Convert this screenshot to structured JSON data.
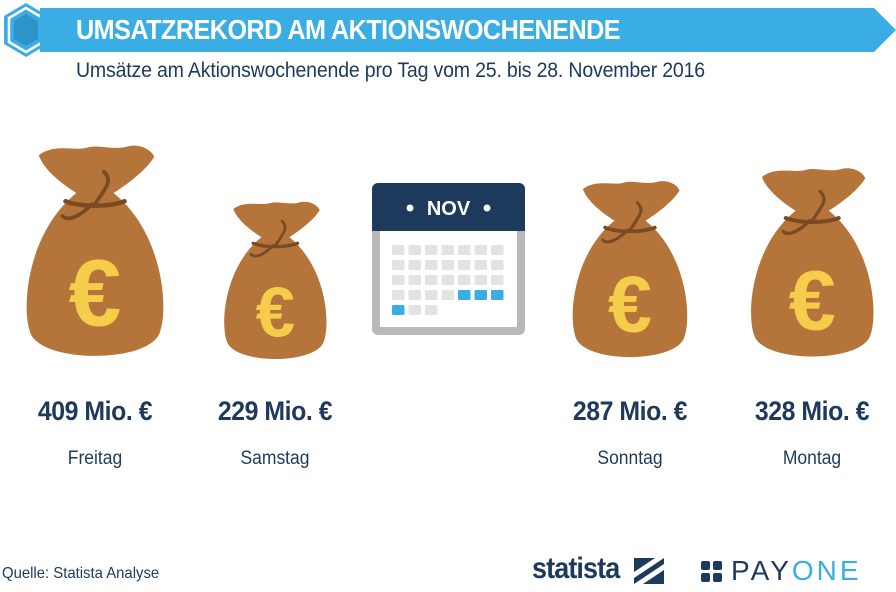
{
  "header": {
    "title": "UMSATZREKORD AM AKTIONSWOCHENENDE",
    "subtitle": "Umsätze am Aktionswochenende pro Tag vom 25. bis 28. November 2016"
  },
  "calendar": {
    "month_label": "NOV"
  },
  "chart_data": {
    "type": "bar",
    "title": "UMSATZREKORD AM AKTIONSWOCHENENDE",
    "subtitle": "Umsätze am Aktionswochenende pro Tag vom 25. bis 28. November 2016",
    "categories": [
      "Freitag",
      "Samstag",
      "Sonntag",
      "Montag"
    ],
    "values": [
      409,
      229,
      287,
      328
    ],
    "value_labels": [
      "409 Mio. €",
      "229 Mio. €",
      "287 Mio. €",
      "328 Mio. €"
    ],
    "unit": "Mio. €",
    "icon": "money-bag-euro-icon"
  },
  "footer": {
    "source": "Quelle: Statista Analyse",
    "brand_statista": "statista",
    "brand_payone_pay": "PAY",
    "brand_payone_one": "ONE"
  },
  "colors": {
    "banner": "#3aaee4",
    "hex": "#3aaee4",
    "navy": "#1d3a5c",
    "bag": "#b5753a",
    "bag_dark": "#7a4a22",
    "euro": "#f5cd4a",
    "calendar_header": "#1d3a5c",
    "calendar_cell": "#e3e3e3",
    "calendar_highlight": "#3aaee4",
    "calendar_frame": "#b9b9b9",
    "payone_light": "#3aaee4"
  }
}
